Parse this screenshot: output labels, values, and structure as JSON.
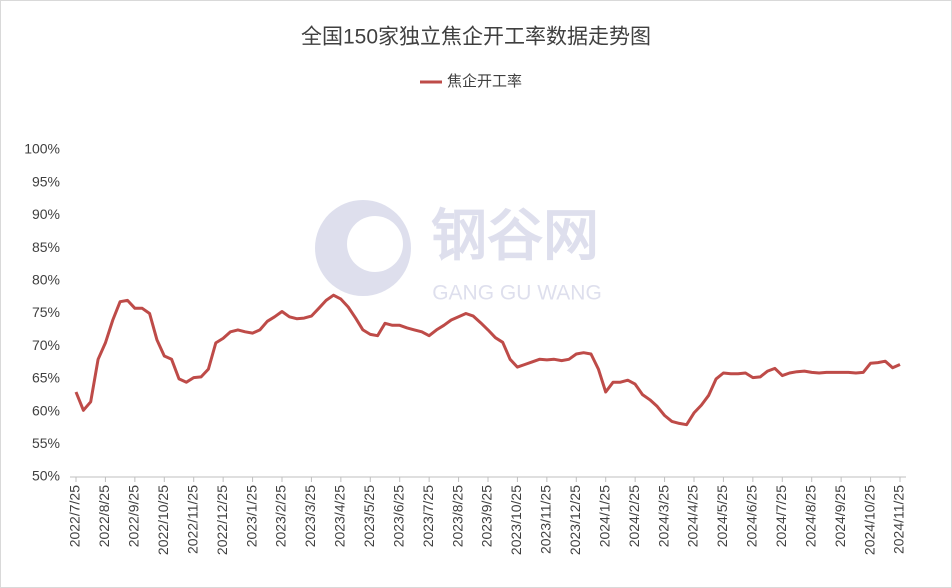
{
  "chart_data": {
    "type": "line",
    "title": "全国150家独立焦企开工率数据走势图",
    "watermark": {
      "text": "钢谷网",
      "subtitle": "GANG GU WANG"
    },
    "categories": [
      "2022/7/25",
      null,
      null,
      null,
      "2022/8/25",
      null,
      null,
      null,
      "2022/9/25",
      null,
      null,
      null,
      "2022/10/25",
      null,
      null,
      null,
      "2022/11/25",
      null,
      null,
      null,
      "2022/12/25",
      null,
      null,
      null,
      "2023/1/25",
      null,
      null,
      null,
      "2023/2/25",
      null,
      null,
      null,
      "2023/3/25",
      null,
      null,
      null,
      "2023/4/25",
      null,
      null,
      null,
      "2023/5/25",
      null,
      null,
      null,
      "2023/6/25",
      null,
      null,
      null,
      "2023/7/25",
      null,
      null,
      null,
      "2023/8/25",
      null,
      null,
      null,
      "2023/9/25",
      null,
      null,
      null,
      "2023/10/25",
      null,
      null,
      null,
      "2023/11/25",
      null,
      null,
      null,
      "2023/12/25",
      null,
      null,
      null,
      "2024/1/25",
      null,
      null,
      null,
      "2024/2/25",
      null,
      null,
      null,
      "2024/3/25",
      null,
      null,
      null,
      "2024/4/25",
      null,
      null,
      null,
      "2024/5/25",
      null,
      null,
      null,
      "2024/6/25",
      null,
      null,
      null,
      "2024/7/25",
      null,
      null,
      null,
      "2024/8/25",
      null,
      null,
      null,
      "2024/9/25",
      null,
      null,
      null,
      "2024/10/25",
      null,
      null,
      null,
      "2024/11/25"
    ],
    "series": [
      {
        "name": "焦企开工率",
        "color": "#be4b48",
        "values": [
          63.0,
          60.2,
          61.5,
          68.0,
          70.5,
          74.0,
          76.8,
          77.0,
          75.8,
          75.8,
          75.0,
          71.0,
          68.5,
          68.0,
          65.0,
          64.5,
          65.2,
          65.3,
          66.5,
          70.5,
          71.2,
          72.2,
          72.5,
          72.2,
          72.0,
          72.5,
          73.8,
          74.5,
          75.3,
          74.5,
          74.2,
          74.3,
          74.6,
          75.8,
          77.0,
          77.8,
          77.2,
          76.0,
          74.3,
          72.5,
          71.8,
          71.6,
          73.5,
          73.2,
          73.2,
          72.8,
          72.5,
          72.2,
          71.6,
          72.5,
          73.2,
          74.0,
          74.5,
          75.0,
          74.6,
          73.6,
          72.5,
          71.3,
          70.6,
          68.0,
          66.8,
          67.2,
          67.6,
          68.0,
          67.9,
          68.0,
          67.8,
          68.0,
          68.8,
          69.0,
          68.8,
          66.5,
          63.0,
          64.5,
          64.5,
          64.8,
          64.2,
          62.6,
          61.8,
          60.8,
          59.4,
          58.5,
          58.2,
          58.0,
          59.8,
          61.0,
          62.5,
          65.0,
          65.9,
          65.8,
          65.8,
          65.9,
          65.2,
          65.3,
          66.2,
          66.6,
          65.5,
          65.9,
          66.1,
          66.2,
          66.0,
          65.9,
          66.0,
          66.0,
          66.0,
          66.0,
          65.9,
          66.0,
          67.4,
          67.5,
          67.7,
          66.7,
          67.2
        ]
      }
    ],
    "ylim": [
      50,
      100
    ],
    "yticks": [
      {
        "value": 50,
        "label": "50%"
      },
      {
        "value": 55,
        "label": "55%"
      },
      {
        "value": 60,
        "label": "60%"
      },
      {
        "value": 65,
        "label": "65%"
      },
      {
        "value": 70,
        "label": "70%"
      },
      {
        "value": 75,
        "label": "75%"
      },
      {
        "value": 80,
        "label": "80%"
      },
      {
        "value": 85,
        "label": "85%"
      },
      {
        "value": 90,
        "label": "90%"
      },
      {
        "value": 95,
        "label": "95%"
      },
      {
        "value": 100,
        "label": "100%"
      }
    ],
    "grid": false,
    "legend": "top"
  }
}
